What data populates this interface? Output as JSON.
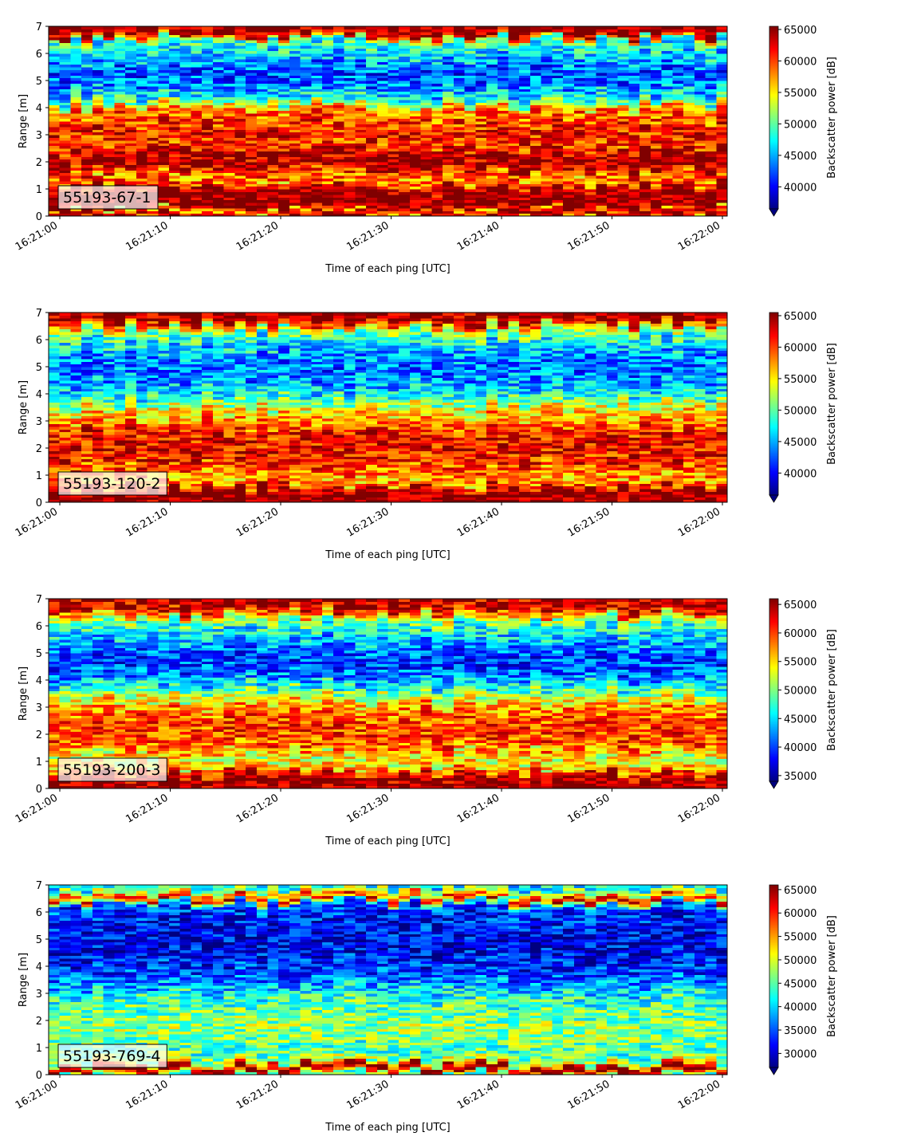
{
  "figure": {
    "xlabel": "Time of each ping [UTC]",
    "ylabel": "Range [m]",
    "colorbar_label": "Backscatter power [dB]",
    "colormap": "jet",
    "x_tick_labels": [
      "16:21:00",
      "16:21:10",
      "16:21:20",
      "16:21:30",
      "16:21:40",
      "16:21:50",
      "16:22:00"
    ],
    "y_tick_labels": [
      "0",
      "1",
      "2",
      "3",
      "4",
      "5",
      "6",
      "7"
    ]
  },
  "chart_data": [
    {
      "type": "heatmap",
      "label": "55193-67-1",
      "xlabel": "Time of each ping [UTC]",
      "ylabel": "Range [m]",
      "colorbar_label": "Backscatter power [dB]",
      "xlim": [
        "16:21:00",
        "16:22:00"
      ],
      "ylim": [
        0,
        7
      ],
      "clim": [
        36500,
        65500
      ],
      "colorbar_ticks": [
        40000,
        45000,
        50000,
        55000,
        60000,
        65000
      ],
      "colorbar_extend": "min",
      "range_profile": [
        [
          0.0,
          64000
        ],
        [
          0.2,
          55000
        ],
        [
          0.3,
          65500
        ],
        [
          0.9,
          65500
        ],
        [
          1.15,
          60000
        ],
        [
          1.4,
          57000
        ],
        [
          1.8,
          63500
        ],
        [
          2.3,
          64000
        ],
        [
          2.6,
          60000
        ],
        [
          3.0,
          62000
        ],
        [
          3.5,
          60000
        ],
        [
          3.9,
          58500
        ],
        [
          4.3,
          48000
        ],
        [
          4.8,
          43500
        ],
        [
          5.3,
          42000
        ],
        [
          5.8,
          45500
        ],
        [
          6.2,
          47500
        ],
        [
          6.5,
          50000
        ],
        [
          6.65,
          63500
        ],
        [
          7.0,
          65500
        ]
      ]
    },
    {
      "type": "heatmap",
      "label": "55193-120-2",
      "xlabel": "Time of each ping [UTC]",
      "ylabel": "Range [m]",
      "colorbar_label": "Backscatter power [dB]",
      "xlim": [
        "16:21:00",
        "16:22:00"
      ],
      "ylim": [
        0,
        7
      ],
      "clim": [
        36500,
        65500
      ],
      "colorbar_ticks": [
        40000,
        45000,
        50000,
        55000,
        60000,
        65000
      ],
      "colorbar_extend": "min",
      "range_profile": [
        [
          0.0,
          65000
        ],
        [
          0.15,
          65500
        ],
        [
          0.5,
          65000
        ],
        [
          0.7,
          57000
        ],
        [
          1.0,
          57500
        ],
        [
          1.5,
          61000
        ],
        [
          2.0,
          62000
        ],
        [
          2.5,
          62000
        ],
        [
          3.0,
          58500
        ],
        [
          3.5,
          54500
        ],
        [
          4.0,
          47500
        ],
        [
          4.5,
          44500
        ],
        [
          5.0,
          43000
        ],
        [
          5.5,
          45000
        ],
        [
          6.0,
          47500
        ],
        [
          6.4,
          52000
        ],
        [
          6.6,
          60000
        ],
        [
          6.8,
          65000
        ],
        [
          7.0,
          64500
        ]
      ]
    },
    {
      "type": "heatmap",
      "label": "55193-200-3",
      "xlabel": "Time of each ping [UTC]",
      "ylabel": "Range [m]",
      "colorbar_label": "Backscatter power [dB]",
      "xlim": [
        "16:21:00",
        "16:22:00"
      ],
      "ylim": [
        0,
        7
      ],
      "clim": [
        34000,
        66000
      ],
      "colorbar_ticks": [
        35000,
        40000,
        45000,
        50000,
        55000,
        60000,
        65000
      ],
      "colorbar_extend": "min",
      "range_profile": [
        [
          0.0,
          65000
        ],
        [
          0.1,
          66000
        ],
        [
          0.5,
          64000
        ],
        [
          0.8,
          55000
        ],
        [
          1.2,
          53000
        ],
        [
          1.6,
          59000
        ],
        [
          2.0,
          60000
        ],
        [
          2.5,
          60000
        ],
        [
          3.0,
          57500
        ],
        [
          3.5,
          51000
        ],
        [
          4.0,
          43500
        ],
        [
          4.5,
          40000
        ],
        [
          5.0,
          40500
        ],
        [
          5.5,
          44000
        ],
        [
          6.0,
          47000
        ],
        [
          6.3,
          52000
        ],
        [
          6.6,
          62000
        ],
        [
          6.85,
          65000
        ],
        [
          7.0,
          63500
        ]
      ]
    },
    {
      "type": "heatmap",
      "label": "55193-769-4",
      "xlabel": "Time of each ping [UTC]",
      "ylabel": "Range [m]",
      "colorbar_label": "Backscatter power [dB]",
      "xlim": [
        "16:21:00",
        "16:22:00"
      ],
      "ylim": [
        0,
        7
      ],
      "clim": [
        27000,
        66000
      ],
      "colorbar_ticks": [
        30000,
        35000,
        40000,
        45000,
        50000,
        55000,
        60000,
        65000
      ],
      "colorbar_extend": "min",
      "range_profile": [
        [
          0.0,
          45000
        ],
        [
          0.15,
          64000
        ],
        [
          0.3,
          66000
        ],
        [
          0.45,
          50000
        ],
        [
          0.8,
          44000
        ],
        [
          1.2,
          45500
        ],
        [
          1.6,
          47000
        ],
        [
          2.0,
          46500
        ],
        [
          2.5,
          45000
        ],
        [
          3.0,
          42000
        ],
        [
          3.5,
          36000
        ],
        [
          4.0,
          33000
        ],
        [
          4.5,
          31500
        ],
        [
          5.0,
          31000
        ],
        [
          5.5,
          32000
        ],
        [
          6.0,
          33500
        ],
        [
          6.3,
          36000
        ],
        [
          6.5,
          62000
        ],
        [
          6.7,
          52000
        ],
        [
          7.0,
          40000
        ]
      ]
    }
  ]
}
